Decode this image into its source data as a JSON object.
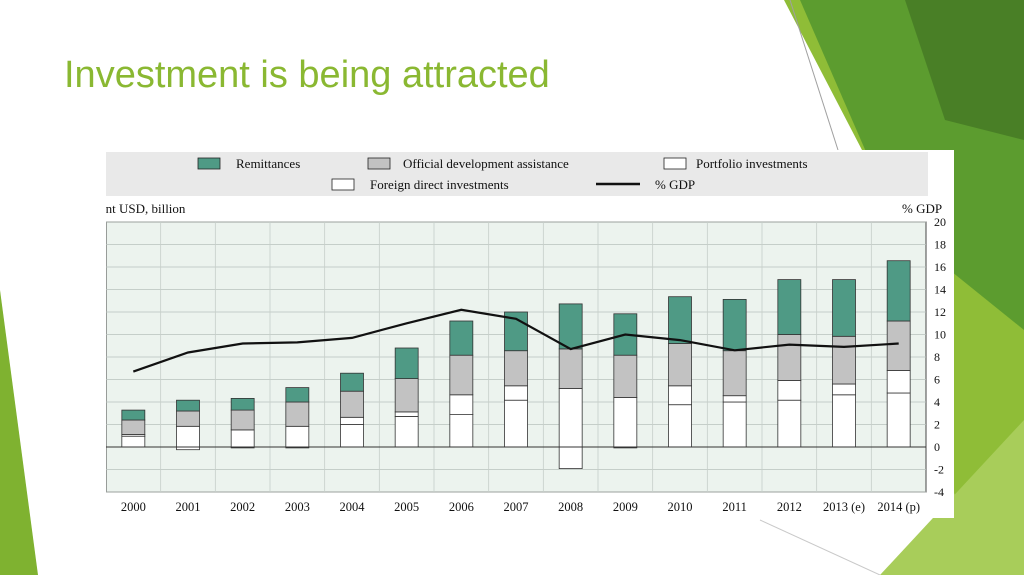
{
  "slide": {
    "title": "Investment is being attracted"
  },
  "colors": {
    "remittances": "#4f9a85",
    "oda": "#c2c2c2",
    "portfolio": "#ffffff",
    "fdi": "#ffffff",
    "gdp_line": "#111111",
    "accent_green": "#8ab832",
    "plot_bg": "#ecf3ee",
    "legend_bg": "#e9e9e9"
  },
  "chart_data": {
    "type": "bar",
    "stacked": true,
    "y_left_label": "Current USD, billion",
    "y_right_label": "% GDP",
    "ylim_left": [
      -50,
      250
    ],
    "ylim_right": [
      -4,
      20
    ],
    "yticks_left": [
      "250",
      "200",
      "150",
      "100",
      "50",
      "0",
      "-50"
    ],
    "yticks_right": [
      "20",
      "18",
      "16",
      "14",
      "12",
      "10",
      "8",
      "6",
      "4",
      "2",
      "0",
      "-2",
      "-4"
    ],
    "categories": [
      "2000",
      "2001",
      "2002",
      "2003",
      "2004",
      "2005",
      "2006",
      "2007",
      "2008",
      "2009",
      "2010",
      "2011",
      "2012",
      "2013 (e)",
      "2014 (p)"
    ],
    "legend": [
      "Remittances",
      "Official development assistance",
      "Portfolio investments",
      "Foreign direct investments",
      "% GDP"
    ],
    "series": [
      {
        "name": "Foreign direct investments",
        "values": [
          12,
          23,
          19,
          23,
          25,
          34,
          36,
          52,
          65,
          55,
          47,
          50,
          52,
          58,
          60
        ]
      },
      {
        "name": "Portfolio investments",
        "values": [
          2,
          -3,
          -1,
          -1,
          8,
          5,
          22,
          16,
          -24,
          -1,
          21,
          7,
          22,
          12,
          25
        ]
      },
      {
        "name": "Official development assistance",
        "values": [
          16,
          17,
          22,
          27,
          29,
          37,
          44,
          39,
          44,
          47,
          47,
          50,
          51,
          53,
          55
        ]
      },
      {
        "name": "Remittances",
        "values": [
          11,
          12,
          13,
          16,
          20,
          34,
          38,
          43,
          50,
          46,
          52,
          57,
          61,
          63,
          67
        ]
      },
      {
        "name": "% GDP",
        "type": "line",
        "axis": "right",
        "values": [
          6.7,
          8.4,
          9.2,
          9.3,
          9.7,
          11,
          12.2,
          11.4,
          8.7,
          10.0,
          9.5,
          8.6,
          9.1,
          8.9,
          9.2
        ]
      }
    ]
  }
}
